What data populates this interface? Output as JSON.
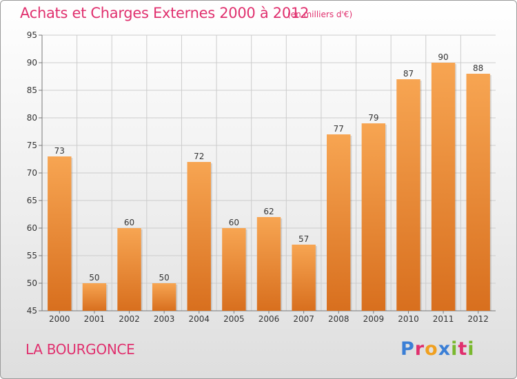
{
  "header": {
    "title": "Achats et Charges Externes 2000 à 2012",
    "subtitle": "(en milliers d'€)"
  },
  "footer": {
    "location": "LA BOURGONCE",
    "logo_text": "Proxiti",
    "logo_letters": [
      {
        "char": "P",
        "color": "#3b7fd6"
      },
      {
        "char": "r",
        "color": "#e0306e"
      },
      {
        "char": "o",
        "color": "#f0a020"
      },
      {
        "char": "x",
        "color": "#3b7fd6"
      },
      {
        "char": "i",
        "color": "#7ab82e"
      },
      {
        "char": "t",
        "color": "#e0306e"
      },
      {
        "char": "i",
        "color": "#7ab82e"
      }
    ]
  },
  "chart_data": {
    "type": "bar",
    "title": "Achats et Charges Externes 2000 à 2012",
    "subtitle": "(en milliers d'€)",
    "categories": [
      "2000",
      "2001",
      "2002",
      "2003",
      "2004",
      "2005",
      "2006",
      "2007",
      "2008",
      "2009",
      "2010",
      "2011",
      "2012"
    ],
    "values": [
      73,
      50,
      60,
      50,
      72,
      60,
      62,
      57,
      77,
      79,
      87,
      90,
      88
    ],
    "ylim": [
      45,
      95
    ],
    "yticks": [
      45,
      50,
      55,
      60,
      65,
      70,
      75,
      80,
      85,
      90,
      95
    ],
    "grid": true,
    "bar_color_top": "#f7a552",
    "bar_color_bottom": "#d86f1e",
    "grid_color": "#cccccc"
  }
}
